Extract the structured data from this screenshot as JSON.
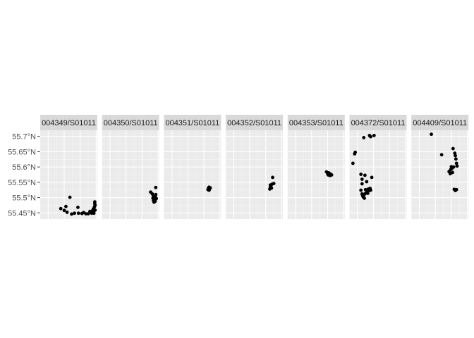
{
  "chart_data": {
    "type": "scatter",
    "facet_layout": "single-row",
    "grid": true,
    "colors": {
      "panel_background": "#ebebeb",
      "strip_background": "#d9d9d9",
      "grid_major": "#ffffff",
      "grid_minor": "#f5f5f5",
      "point": "#000000"
    },
    "ylim": [
      55.43,
      55.72
    ],
    "y_ticks": [
      {
        "value": 55.45,
        "label": "55.45°N"
      },
      {
        "value": 55.5,
        "label": "55.5°N"
      },
      {
        "value": 55.55,
        "label": "55.55°N"
      },
      {
        "value": 55.6,
        "label": "55.6°N"
      },
      {
        "value": 55.65,
        "label": "55.65°N"
      },
      {
        "value": 55.7,
        "label": "55.7°N"
      }
    ],
    "facets": [
      {
        "label": "004349/S01011",
        "points": [
          [
            0.36,
            55.464
          ],
          [
            0.42,
            55.458
          ],
          [
            0.45,
            55.471
          ],
          [
            0.47,
            55.452
          ],
          [
            0.52,
            55.501
          ],
          [
            0.55,
            55.446
          ],
          [
            0.6,
            55.449
          ],
          [
            0.66,
            55.468
          ],
          [
            0.67,
            55.449
          ],
          [
            0.73,
            55.448
          ],
          [
            0.76,
            55.451
          ],
          [
            0.8,
            55.447
          ],
          [
            0.84,
            55.447
          ],
          [
            0.87,
            55.455
          ],
          [
            0.9,
            55.449
          ],
          [
            0.92,
            55.458
          ],
          [
            0.93,
            55.463
          ],
          [
            0.95,
            55.47
          ],
          [
            0.955,
            55.48
          ],
          [
            0.955,
            55.486
          ],
          [
            0.96,
            55.459
          ],
          [
            0.96,
            55.475
          ],
          [
            0.94,
            55.449
          ],
          [
            0.93,
            55.452
          ]
        ]
      },
      {
        "label": "004350/S01011",
        "points": [
          [
            0.85,
            55.518
          ],
          [
            0.88,
            55.512
          ],
          [
            0.89,
            55.498
          ],
          [
            0.9,
            55.504
          ],
          [
            0.9,
            55.49
          ],
          [
            0.91,
            55.485
          ],
          [
            0.92,
            55.495
          ],
          [
            0.93,
            55.503
          ],
          [
            0.94,
            55.51
          ],
          [
            0.93,
            55.488
          ],
          [
            0.95,
            55.497
          ],
          [
            0.94,
            55.533
          ]
        ]
      },
      {
        "label": "004351/S01011",
        "points": [
          [
            0.77,
            55.526
          ],
          [
            0.78,
            55.531
          ],
          [
            0.79,
            55.534
          ],
          [
            0.8,
            55.528
          ],
          [
            0.81,
            55.532
          ],
          [
            0.79,
            55.524
          ]
        ]
      },
      {
        "label": "004352/S01011",
        "points": [
          [
            0.77,
            55.528
          ],
          [
            0.78,
            55.534
          ],
          [
            0.79,
            55.539
          ],
          [
            0.8,
            55.531
          ],
          [
            0.81,
            55.544
          ],
          [
            0.84,
            55.546
          ],
          [
            0.82,
            55.566
          ],
          [
            0.78,
            55.541
          ]
        ]
      },
      {
        "label": "004353/S01011",
        "points": [
          [
            0.68,
            55.584
          ],
          [
            0.7,
            55.578
          ],
          [
            0.71,
            55.574
          ],
          [
            0.72,
            55.581
          ],
          [
            0.73,
            55.576
          ],
          [
            0.75,
            55.577
          ],
          [
            0.74,
            55.572
          ],
          [
            0.77,
            55.574
          ]
        ]
      },
      {
        "label": "004372/S01011",
        "points": [
          [
            0.06,
            55.612
          ],
          [
            0.09,
            55.643
          ],
          [
            0.1,
            55.648
          ],
          [
            0.2,
            55.576
          ],
          [
            0.22,
            55.56
          ],
          [
            0.22,
            55.545
          ],
          [
            0.2,
            55.524
          ],
          [
            0.22,
            55.512
          ],
          [
            0.23,
            55.506
          ],
          [
            0.25,
            55.51
          ],
          [
            0.24,
            55.502
          ],
          [
            0.26,
            55.498
          ],
          [
            0.27,
            55.512
          ],
          [
            0.28,
            55.526
          ],
          [
            0.3,
            55.52
          ],
          [
            0.32,
            55.514
          ],
          [
            0.33,
            55.528
          ],
          [
            0.34,
            55.523
          ],
          [
            0.36,
            55.53
          ],
          [
            0.37,
            55.524
          ],
          [
            0.3,
            55.552
          ],
          [
            0.39,
            55.566
          ],
          [
            0.25,
            55.696
          ],
          [
            0.35,
            55.703
          ],
          [
            0.37,
            55.699
          ],
          [
            0.43,
            55.703
          ],
          [
            0.27,
            55.573
          ]
        ]
      },
      {
        "label": "004409/S01011",
        "points": [
          [
            0.35,
            55.707
          ],
          [
            0.53,
            55.64
          ],
          [
            0.66,
            55.585
          ],
          [
            0.68,
            55.578
          ],
          [
            0.69,
            55.592
          ],
          [
            0.7,
            55.601
          ],
          [
            0.71,
            55.595
          ],
          [
            0.72,
            55.582
          ],
          [
            0.73,
            55.66
          ],
          [
            0.76,
            55.645
          ],
          [
            0.77,
            55.637
          ],
          [
            0.78,
            55.626
          ],
          [
            0.79,
            55.612
          ],
          [
            0.8,
            55.603
          ],
          [
            0.75,
            55.527
          ],
          [
            0.77,
            55.523
          ],
          [
            0.79,
            55.526
          ],
          [
            0.74,
            55.6
          ]
        ]
      }
    ]
  }
}
